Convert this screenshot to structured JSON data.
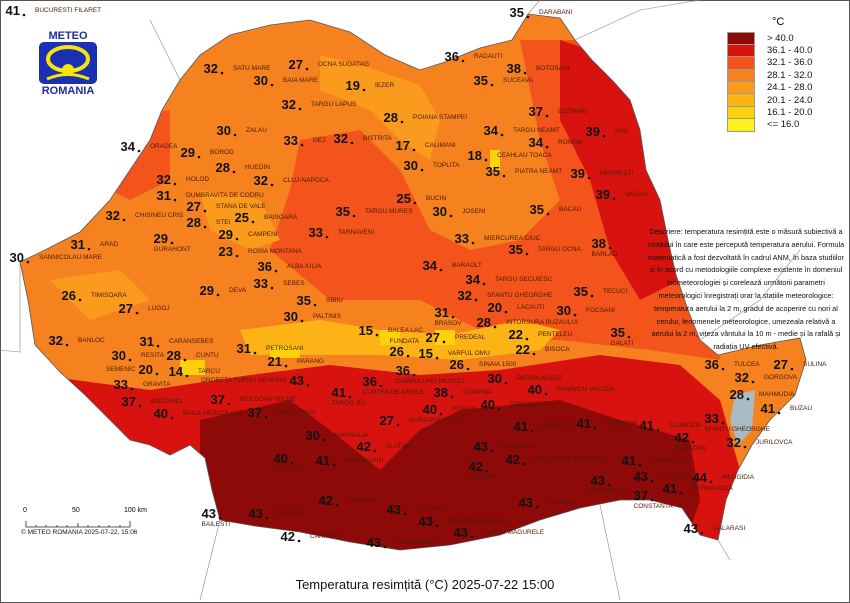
{
  "title": "Temperatura resimțită (°C) 2025-07-22 15:00",
  "logo": {
    "top": "METEO",
    "bottom": "ROMANIA"
  },
  "legend": {
    "unit": "°C",
    "items": [
      {
        "label": "> 40.0",
        "color": "#8e0a08"
      },
      {
        "label": "36.1 - 40.0",
        "color": "#d8130f"
      },
      {
        "label": "32.1 - 36.0",
        "color": "#f2541b"
      },
      {
        "label": "28.1 - 32.0",
        "color": "#f6821f"
      },
      {
        "label": "24.1 - 28.0",
        "color": "#fa9b1d"
      },
      {
        "label": "20.1 - 24.0",
        "color": "#fdb316"
      },
      {
        "label": "16.1 - 20.0",
        "color": "#fdd10b"
      },
      {
        "label": "<= 16.0",
        "color": "#fff01a"
      }
    ]
  },
  "description": "Descriere: temperatura resimțită este o măsură subiectivă a modului în care este percepută temperatura aerului. Formula matematică a fost dezvoltată în cadrul ANM, în baza studiilor și în acord cu metodologiile complexe existente în domeniul biometeorologiei și corelează următorii parametri meteorologici înregistrați orar la stațiile meteorologice: temperatura aerului la 2 m, gradul de acoperire cu nori al cerului, fenomenele meteorologice, umezeala relativă a aerului la 2 m, viteza vântului la 10 m - medie și la rafală și radiația UV efectivă.",
  "scale": {
    "ticks": [
      "0",
      "50",
      "100 km"
    ]
  },
  "copyright": "© METEO ROMANIA 2025-07-22, 15:06",
  "stations": [
    {
      "name": "DARABANI",
      "value": 35
    },
    {
      "name": "RADAUTI",
      "value": 36
    },
    {
      "name": "BOTOSANI",
      "value": 38
    },
    {
      "name": "SUCEAVA",
      "value": 35
    },
    {
      "name": "SATU MARE",
      "value": 32
    },
    {
      "name": "BAIA MARE",
      "value": 30
    },
    {
      "name": "OCNA SUGATAG",
      "value": 27
    },
    {
      "name": "IEZER",
      "value": 19
    },
    {
      "name": "TARGU LAPUS",
      "value": 32
    },
    {
      "name": "POIANA STAMPEI",
      "value": 28
    },
    {
      "name": "TARGU NEAMT",
      "value": 34
    },
    {
      "name": "COTNARI",
      "value": 37
    },
    {
      "name": "IASI",
      "value": 39
    },
    {
      "name": "ZALAU",
      "value": 30
    },
    {
      "name": "DEJ",
      "value": 33
    },
    {
      "name": "BISTRITA",
      "value": 32
    },
    {
      "name": "CALIMANI",
      "value": 17
    },
    {
      "name": "CEAHLAU TOACA",
      "value": 18
    },
    {
      "name": "PIATRA NEAMT",
      "value": 35
    },
    {
      "name": "ROMAN",
      "value": 34
    },
    {
      "name": "NEGRESTI",
      "value": 39
    },
    {
      "name": "ORADEA",
      "value": 34
    },
    {
      "name": "BOROD",
      "value": 29
    },
    {
      "name": "HUEDIN",
      "value": 28
    },
    {
      "name": "CLUJ-NAPOCA",
      "value": 32
    },
    {
      "name": "TOPLITA",
      "value": 30
    },
    {
      "name": "HOLOD",
      "value": 32
    },
    {
      "name": "CHISINEU CRIS",
      "value": 32
    },
    {
      "name": "DUMBRAVITA DE CODRU",
      "value": 31
    },
    {
      "name": "STANA DE VALE",
      "value": 27
    },
    {
      "name": "STEI",
      "value": 28
    },
    {
      "name": "BAISOARA",
      "value": 25
    },
    {
      "name": "BUCIN",
      "value": 25
    },
    {
      "name": "JOSENI",
      "value": 30
    },
    {
      "name": "TARGU MURES",
      "value": 35
    },
    {
      "name": "VASLUI",
      "value": 39
    },
    {
      "name": "BACAU",
      "value": 35
    },
    {
      "name": "CAMPENI",
      "value": 29
    },
    {
      "name": "ROSIA MONTANA",
      "value": 23
    },
    {
      "name": "GURAHONT",
      "value": 29
    },
    {
      "name": "TARNAVENI",
      "value": 33
    },
    {
      "name": "MIERCUREA CIUC",
      "value": 33
    },
    {
      "name": "TARGU OCNA",
      "value": 35
    },
    {
      "name": "BARLAD",
      "value": 38
    },
    {
      "name": "SANNICOLAU MARE",
      "value": 30
    },
    {
      "name": "ARAD",
      "value": 31
    },
    {
      "name": "ALBA IULIA",
      "value": 36
    },
    {
      "name": "SEBES",
      "value": 33
    },
    {
      "name": "BARAOLT",
      "value": 34
    },
    {
      "name": "TARGU SECUIESC",
      "value": 34
    },
    {
      "name": "SFANTU GHEORGHE",
      "value": 32
    },
    {
      "name": "TIMISOARA",
      "value": 26
    },
    {
      "name": "DEVA",
      "value": 29
    },
    {
      "name": "LACAUTI",
      "value": 20
    },
    {
      "name": "TECUCI",
      "value": 35
    },
    {
      "name": "SIBIU",
      "value": 35
    },
    {
      "name": "PALTINIS",
      "value": 30
    },
    {
      "name": "BRASOV",
      "value": 31
    },
    {
      "name": "FOCSANI",
      "value": 30
    },
    {
      "name": "INTORSURA BUZAULUI",
      "value": 28
    },
    {
      "name": "PENTELEU",
      "value": 22
    },
    {
      "name": "BISOCA",
      "value": 22
    },
    {
      "name": "LUGOJ",
      "value": 27
    },
    {
      "name": "BANLOC",
      "value": 32
    },
    {
      "name": "CARANSEBES",
      "value": 31
    },
    {
      "name": "PETROSANI",
      "value": 31
    },
    {
      "name": "PARANG",
      "value": 21
    },
    {
      "name": "BALEA LAC",
      "value": 15
    },
    {
      "name": "PREDEAL",
      "value": 27
    },
    {
      "name": "VARFUL OMU",
      "value": 15
    },
    {
      "name": "FUNDATA",
      "value": 26
    },
    {
      "name": "SINAIA 1500",
      "value": 26
    },
    {
      "name": "GALATI",
      "value": 35
    },
    {
      "name": "RESITA",
      "value": 30
    },
    {
      "name": "CUNTU",
      "value": 28
    },
    {
      "name": "TARCU",
      "value": 14
    },
    {
      "name": "SEMENIC",
      "value": 20
    },
    {
      "name": "CAMPULUNG MUSCEL",
      "value": 36
    },
    {
      "name": "CURTEA DE ARGES",
      "value": 36
    },
    {
      "name": "CAMPINA",
      "value": 38
    },
    {
      "name": "PATARLAGELE",
      "value": 30
    },
    {
      "name": "TULCEA",
      "value": 36
    },
    {
      "name": "GORGOVA",
      "value": 32
    },
    {
      "name": "MAHMUDIA",
      "value": 28
    },
    {
      "name": "SULINA",
      "value": 27
    },
    {
      "name": "GRAVITA",
      "value": 33
    },
    {
      "name": "BOZOVICI",
      "value": 37
    },
    {
      "name": "BAILE HERCULANE",
      "value": 40
    },
    {
      "name": "MOLDOVA VECHE",
      "value": 37
    },
    {
      "name": "DROBETA TURNU SEVERIN",
      "value": 43
    },
    {
      "name": "POLOVRAGI",
      "value": 37
    },
    {
      "name": "TARGU JIU",
      "value": 41
    },
    {
      "name": "RAMNICU VALCEA",
      "value": 40
    },
    {
      "name": "BUZAU",
      "value": 41
    },
    {
      "name": "SFANTU GHEORGHE",
      "value": 33
    },
    {
      "name": "JURILOVCA",
      "value": 32
    },
    {
      "name": "GURA PORTITEI",
      "value": 27
    },
    {
      "name": "PITESTI",
      "value": 40
    },
    {
      "name": "TARGOVISTE",
      "value": 40
    },
    {
      "name": "PLOIESTI",
      "value": 41
    },
    {
      "name": "URZICENI",
      "value": 41
    },
    {
      "name": "SLOBOZIA",
      "value": 41
    },
    {
      "name": "HARSOVA",
      "value": 42
    },
    {
      "name": "CORUGEA",
      "value": 41
    },
    {
      "name": "FETESTI",
      "value": 43
    },
    {
      "name": "CERNAVODA",
      "value": 41
    },
    {
      "name": "MEDGIDIA",
      "value": 44
    },
    {
      "name": "CONSTANTA",
      "value": 37
    },
    {
      "name": "ADAMCLISI",
      "value": 43
    },
    {
      "name": "CALARASI",
      "value": 43
    },
    {
      "name": "MANGALIA",
      "value": 30
    },
    {
      "name": "DRAGASANI",
      "value": 41
    },
    {
      "name": "SLATINA",
      "value": 42
    },
    {
      "name": "STOLNICI",
      "value": 40
    },
    {
      "name": "CRAIOVA",
      "value": 42
    },
    {
      "name": "CARACAL",
      "value": 42
    },
    {
      "name": "BECHET",
      "value": 43
    },
    {
      "name": "BAILESTI",
      "value": 43
    },
    {
      "name": "CALAFAT",
      "value": 43
    },
    {
      "name": "ROSIORI DE VEDE",
      "value": 43
    },
    {
      "name": "ALEXANDRIA",
      "value": 43
    },
    {
      "name": "TURNU MAGURELE",
      "value": 43
    },
    {
      "name": "GIURGIU",
      "value": 43
    },
    {
      "name": "OLTENITA",
      "value": 43
    },
    {
      "name": "BUCURESTI BANEASA",
      "value": 42
    },
    {
      "name": "AFUMATI",
      "value": 42
    },
    {
      "name": "BUCURESTI FILARET",
      "value": 41
    }
  ]
}
